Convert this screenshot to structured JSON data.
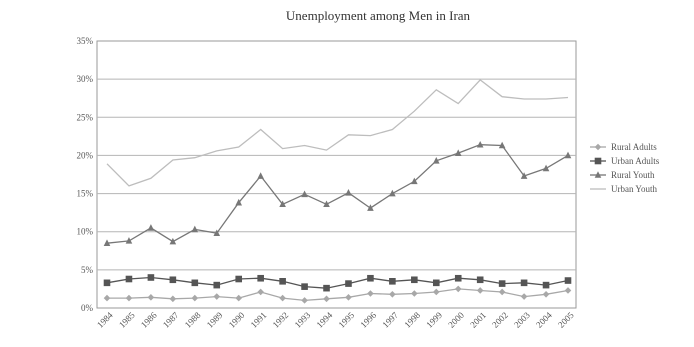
{
  "chart_data": {
    "type": "line",
    "title": "Unemployment among Men in Iran",
    "xlabel": "",
    "ylabel": "",
    "x": [
      "1984",
      "1985",
      "1986",
      "1987",
      "1988",
      "1989",
      "1990",
      "1991",
      "1992",
      "1993",
      "1994",
      "1995",
      "1996",
      "1997",
      "1998",
      "1999",
      "2000",
      "2001",
      "2002",
      "2003",
      "2004",
      "2005"
    ],
    "ylim": [
      0,
      35
    ],
    "yticks": [
      0,
      5,
      10,
      15,
      20,
      25,
      30,
      35
    ],
    "ytick_labels": [
      "0%",
      "5%",
      "10%",
      "15%",
      "20%",
      "25%",
      "30%",
      "35%"
    ],
    "grid": "horizontal",
    "legend_position": "right",
    "series": [
      {
        "name": "Rural Adults",
        "marker": "diamond",
        "color": "#a8a8a8",
        "values": [
          1.3,
          1.3,
          1.4,
          1.2,
          1.3,
          1.5,
          1.3,
          2.1,
          1.3,
          1.0,
          1.2,
          1.4,
          1.9,
          1.8,
          1.9,
          2.1,
          2.5,
          2.3,
          2.1,
          1.5,
          1.8,
          2.3
        ]
      },
      {
        "name": "Urban Adults",
        "marker": "square",
        "color": "#555555",
        "values": [
          3.3,
          3.8,
          4.0,
          3.7,
          3.3,
          3.0,
          3.8,
          3.9,
          3.5,
          2.8,
          2.6,
          3.2,
          3.9,
          3.5,
          3.7,
          3.3,
          3.9,
          3.7,
          3.2,
          3.3,
          3.0,
          3.6
        ]
      },
      {
        "name": "Rural Youth",
        "marker": "triangle",
        "color": "#777777",
        "values": [
          8.5,
          8.8,
          10.5,
          8.7,
          10.3,
          9.8,
          13.8,
          17.3,
          13.6,
          14.9,
          13.6,
          15.1,
          13.1,
          15.0,
          16.6,
          19.3,
          20.3,
          21.4,
          21.3,
          17.3,
          18.3,
          20.0
        ]
      },
      {
        "name": "Urban Youth",
        "marker": "none",
        "color": "#bdbdbd",
        "values": [
          18.9,
          16.0,
          17.0,
          19.4,
          19.7,
          20.6,
          21.1,
          23.4,
          20.9,
          21.3,
          20.7,
          22.7,
          22.6,
          23.4,
          25.8,
          28.6,
          26.8,
          29.9,
          27.7,
          27.4,
          27.4,
          27.6
        ]
      }
    ]
  }
}
